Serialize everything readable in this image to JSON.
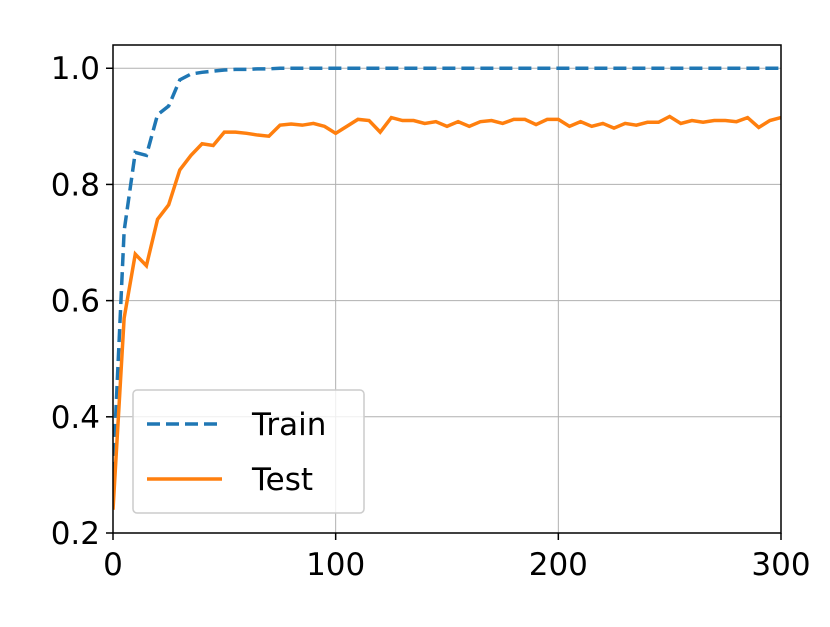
{
  "chart_data": {
    "type": "line",
    "x": [
      0,
      5,
      10,
      15,
      20,
      25,
      30,
      35,
      40,
      45,
      50,
      55,
      60,
      65,
      70,
      75,
      80,
      85,
      90,
      95,
      100,
      105,
      110,
      115,
      120,
      125,
      130,
      135,
      140,
      145,
      150,
      155,
      160,
      165,
      170,
      175,
      180,
      185,
      190,
      195,
      200,
      205,
      210,
      215,
      220,
      225,
      230,
      235,
      240,
      245,
      250,
      255,
      260,
      265,
      270,
      275,
      280,
      285,
      290,
      295,
      300
    ],
    "series": [
      {
        "name": "Train",
        "color": "#1f77b4",
        "dash": true,
        "values": [
          0.3,
          0.72,
          0.855,
          0.85,
          0.92,
          0.935,
          0.98,
          0.99,
          0.993,
          0.995,
          0.997,
          0.998,
          0.998,
          0.999,
          0.999,
          1.0,
          1.0,
          1.0,
          1.0,
          1.0,
          1.0,
          1.0,
          1.0,
          1.0,
          1.0,
          1.0,
          1.0,
          1.0,
          1.0,
          1.0,
          1.0,
          1.0,
          1.0,
          1.0,
          1.0,
          1.0,
          1.0,
          1.0,
          1.0,
          1.0,
          1.0,
          1.0,
          1.0,
          1.0,
          1.0,
          1.0,
          1.0,
          1.0,
          1.0,
          1.0,
          1.0,
          1.0,
          1.0,
          1.0,
          1.0,
          1.0,
          1.0,
          1.0,
          1.0,
          1.0,
          1.0
        ]
      },
      {
        "name": "Test",
        "color": "#ff7f0e",
        "dash": false,
        "values": [
          0.24,
          0.57,
          0.68,
          0.66,
          0.74,
          0.765,
          0.825,
          0.85,
          0.87,
          0.867,
          0.89,
          0.89,
          0.888,
          0.885,
          0.883,
          0.902,
          0.904,
          0.902,
          0.905,
          0.9,
          0.888,
          0.9,
          0.912,
          0.91,
          0.89,
          0.915,
          0.91,
          0.91,
          0.905,
          0.908,
          0.9,
          0.908,
          0.9,
          0.908,
          0.91,
          0.905,
          0.912,
          0.912,
          0.903,
          0.912,
          0.912,
          0.9,
          0.908,
          0.9,
          0.905,
          0.897,
          0.905,
          0.902,
          0.907,
          0.907,
          0.917,
          0.905,
          0.91,
          0.907,
          0.91,
          0.91,
          0.908,
          0.915,
          0.898,
          0.91,
          0.915
        ]
      }
    ],
    "xlim": [
      0,
      300
    ],
    "ylim": [
      0.2,
      1.04
    ],
    "xticks": [
      0,
      100,
      200,
      300
    ],
    "yticks": [
      0.2,
      0.4,
      0.6,
      0.8,
      {
        "value": 1.0,
        "label": "1.0"
      }
    ],
    "grid": true,
    "legend": "lower left"
  }
}
